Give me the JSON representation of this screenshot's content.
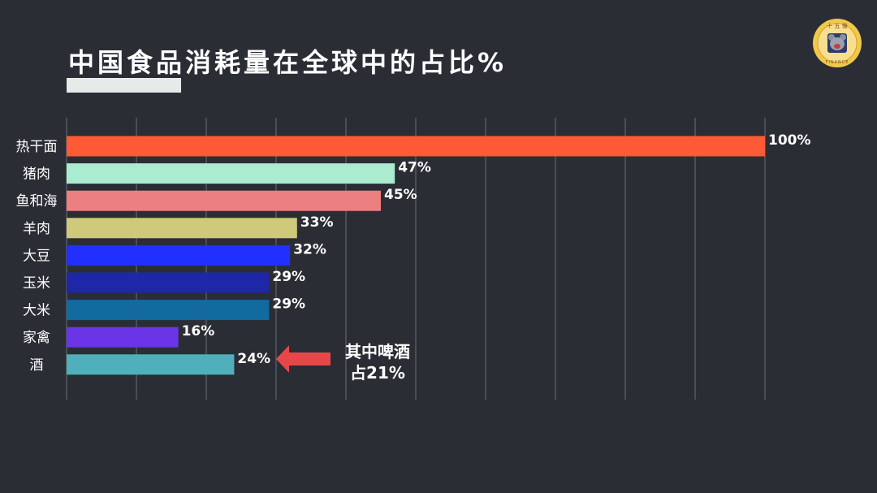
{
  "title": "中国食品消耗量在全球中的占比%",
  "logo": {
    "icon": "circular-bear-logo-icon",
    "ring_text": "FINANCE",
    "top_text": "十 五 億"
  },
  "colors": {
    "background": "#2a2d34",
    "gridline": "#6b6f77",
    "label": "#ffffff",
    "arrow": "#e8474a"
  },
  "annotation": {
    "line1": "其中啤酒",
    "line2": "占21%",
    "target_category": "酒",
    "icon": "left-arrow-icon"
  },
  "chart_data": {
    "type": "bar",
    "orientation": "horizontal",
    "title": "中国食品消耗量在全球中的占比%",
    "xlabel": "",
    "ylabel": "",
    "xlim": [
      0,
      100
    ],
    "grid": true,
    "value_suffix": "%",
    "categories": [
      "热干面",
      "猪肉",
      "鱼和海",
      "羊肉",
      "大豆",
      "玉米",
      "大米",
      "家禽",
      "酒"
    ],
    "values": [
      100,
      47,
      45,
      33,
      32,
      29,
      29,
      16,
      24
    ],
    "colors": [
      "#ff5a36",
      "#abebd0",
      "#ec8080",
      "#cfc97a",
      "#2130ff",
      "#1e28a6",
      "#136a9e",
      "#6a35e6",
      "#4fb0bb"
    ]
  }
}
